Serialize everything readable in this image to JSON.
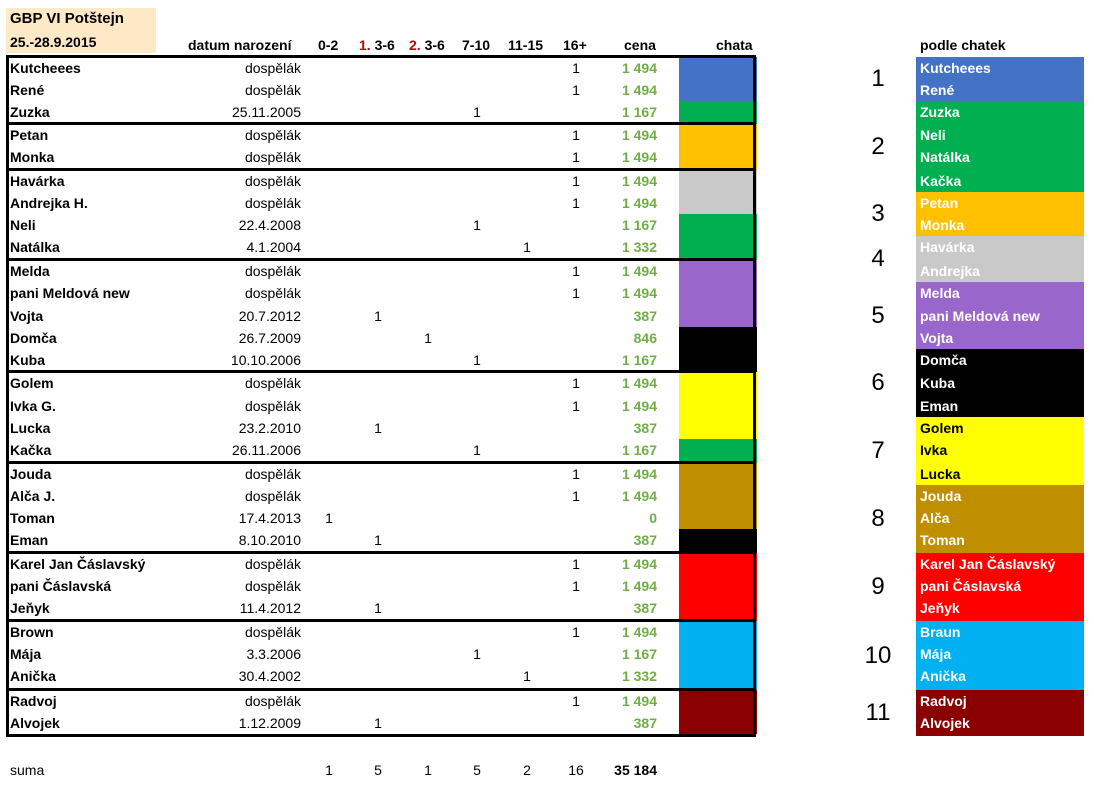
{
  "title": "GBP VI Potštejn",
  "dates": "25.-28.9.2015",
  "headers": {
    "dob": "datum narození",
    "c02": "0-2",
    "c36a_num": "1.",
    "c36a": " 3-6",
    "c36b_num": "2.",
    "c36b": " 3-6",
    "c710": "7-10",
    "c1115": "11-15",
    "c16": "16+",
    "price": "cena",
    "chata": "chata",
    "right_title": "podle chatek"
  },
  "colors": {
    "blue": "#4472c4",
    "green": "#00b050",
    "orange": "#ffc000",
    "gray": "#c9c9c9",
    "purple": "#9966cc",
    "black": "#000000",
    "yellow": "#ffff00",
    "gold": "#bf8f00",
    "red": "#ff0000",
    "cyan": "#00b0f0",
    "darkred": "#8b0000",
    "price": "#70ad47",
    "header_bg": "#fde9c6"
  },
  "rows": [
    {
      "name": "Kutcheees",
      "dob": "dospělák",
      "c16": "1",
      "price": "1 494",
      "color": "blue"
    },
    {
      "name": "René",
      "dob": "dospělák",
      "c16": "1",
      "price": "1 494",
      "color": "blue"
    },
    {
      "name": "Zuzka",
      "dob": "25.11.2005",
      "c710": "1",
      "price": "1 167",
      "color": "green"
    },
    {
      "name": "Petan",
      "dob": "dospělák",
      "c16": "1",
      "price": "1 494",
      "color": "orange"
    },
    {
      "name": "Monka",
      "dob": "dospělák",
      "c16": "1",
      "price": "1 494",
      "color": "orange"
    },
    {
      "name": "Havárka",
      "dob": "dospělák",
      "c16": "1",
      "price": "1 494",
      "color": "gray"
    },
    {
      "name": "Andrejka H.",
      "dob": "dospělák",
      "c16": "1",
      "price": "1 494",
      "color": "gray"
    },
    {
      "name": "Neli",
      "dob": "22.4.2008",
      "c710": "1",
      "price": "1 167",
      "color": "green"
    },
    {
      "name": "Natálka",
      "dob": "4.1.2004",
      "c1115": "1",
      "price": "1 332",
      "color": "green"
    },
    {
      "name": "Melda",
      "dob": "dospělák",
      "c16": "1",
      "price": "1 494",
      "color": "purple"
    },
    {
      "name": "pani Meldová new",
      "dob": "dospělák",
      "c16": "1",
      "price": "1 494",
      "color": "purple"
    },
    {
      "name": "Vojta",
      "dob": "20.7.2012",
      "c36a": "1",
      "price": "387",
      "color": "purple"
    },
    {
      "name": "Domča",
      "dob": "26.7.2009",
      "c36b": "1",
      "price": "846",
      "color": "black"
    },
    {
      "name": "Kuba",
      "dob": "10.10.2006",
      "c710": "1",
      "price": "1 167",
      "color": "black"
    },
    {
      "name": "Golem",
      "dob": "dospělák",
      "c16": "1",
      "price": "1 494",
      "color": "yellow"
    },
    {
      "name": "Ivka G.",
      "dob": "dospělák",
      "c16": "1",
      "price": "1 494",
      "color": "yellow"
    },
    {
      "name": "Lucka",
      "dob": "23.2.2010",
      "c36a": "1",
      "price": "387",
      "color": "yellow"
    },
    {
      "name": "Kačka",
      "dob": "26.11.2006",
      "c710": "1",
      "price": "1 167",
      "color": "green"
    },
    {
      "name": "Jouda",
      "dob": "dospělák",
      "c16": "1",
      "price": "1 494",
      "color": "gold"
    },
    {
      "name": "Alča J.",
      "dob": "dospělák",
      "c16": "1",
      "price": "1 494",
      "color": "gold"
    },
    {
      "name": "Toman",
      "dob": "17.4.2013",
      "c02": "1",
      "price": "0",
      "color": "gold"
    },
    {
      "name": "Eman",
      "dob": "8.10.2010",
      "c36a": "1",
      "price": "387",
      "color": "black"
    },
    {
      "name": "Karel Jan Čáslavský",
      "dob": "dospělák",
      "c16": "1",
      "price": "1 494",
      "color": "red"
    },
    {
      "name": "pani Čáslavská",
      "dob": "dospělák",
      "c16": "1",
      "price": "1 494",
      "color": "red"
    },
    {
      "name": "Jeňyk",
      "dob": "11.4.2012",
      "c36a": "1",
      "price": "387",
      "color": "red"
    },
    {
      "name": "Brown",
      "dob": "dospělák",
      "c16": "1",
      "price": "1 494",
      "color": "cyan"
    },
    {
      "name": "Mája",
      "dob": "3.3.2006",
      "c710": "1",
      "price": "1 167",
      "color": "cyan"
    },
    {
      "name": "Anička",
      "dob": "30.4.2002",
      "c1115": "1",
      "price": "1 332",
      "color": "cyan"
    },
    {
      "name": "Radvoj",
      "dob": "dospělák",
      "c16": "1",
      "price": "1 494",
      "color": "darkred"
    },
    {
      "name": "Alvojek",
      "dob": "1.12.2009",
      "c36a": "1",
      "price": "387",
      "color": "darkred"
    }
  ],
  "sum": {
    "label": "suma",
    "c02": "1",
    "c36a": "5",
    "c36b": "1",
    "c710": "5",
    "c1115": "2",
    "c16": "16",
    "price": "35 184"
  },
  "cabins": [
    {
      "number": "1",
      "color": "blue",
      "text_color": "#ffffff",
      "names": [
        "Kutcheees",
        "René"
      ]
    },
    {
      "number": "2",
      "color": "green",
      "text_color": "#ffffff",
      "names": [
        "Zuzka",
        "Neli",
        "Natálka",
        "Kačka"
      ]
    },
    {
      "number": "3",
      "color": "orange",
      "text_color": "#ffffff",
      "names": [
        "Petan",
        "Monka"
      ]
    },
    {
      "number": "4",
      "color": "gray",
      "text_color": "#ffffff",
      "names": [
        "Havárka",
        "Andrejka"
      ]
    },
    {
      "number": "5",
      "color": "purple",
      "text_color": "#ffffff",
      "names": [
        "Melda",
        "pani Meldová new",
        "Vojta"
      ]
    },
    {
      "number": "6",
      "color": "black",
      "text_color": "#ffffff",
      "names": [
        "Domča",
        "Kuba",
        "Eman"
      ]
    },
    {
      "number": "7",
      "color": "yellow",
      "text_color": "#000000",
      "names": [
        "Golem",
        "Ivka",
        "Lucka"
      ]
    },
    {
      "number": "8",
      "color": "gold",
      "text_color": "#ffffff",
      "names": [
        "Jouda",
        "Alča",
        "Toman"
      ]
    },
    {
      "number": "9",
      "color": "red",
      "text_color": "#ffffff",
      "names": [
        "Karel Jan Čáslavský",
        "pani Čáslavská",
        "Jeňyk"
      ]
    },
    {
      "number": "10",
      "color": "cyan",
      "text_color": "#ffffff",
      "names": [
        "Braun",
        "Mája",
        "Anička"
      ]
    },
    {
      "number": "11",
      "color": "darkred",
      "text_color": "#ffffff",
      "names": [
        "Radvoj",
        "Alvojek"
      ]
    }
  ]
}
